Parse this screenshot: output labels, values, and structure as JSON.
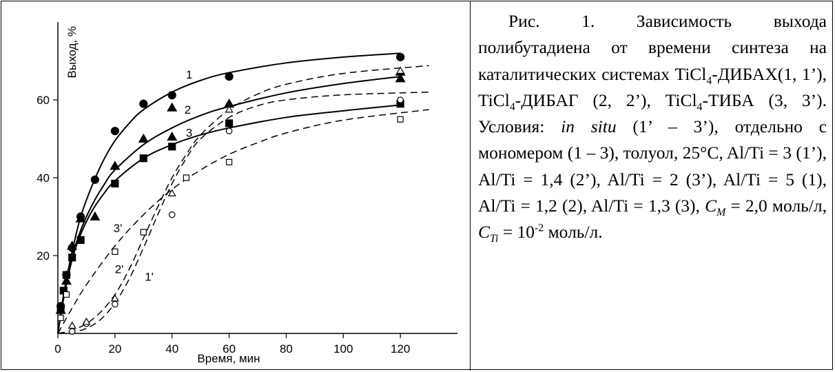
{
  "figure": {
    "caption_parts": {
      "lead": "Рис. 1. Зависимость выхода полибутадиена от времени синтеза на каталитических системах TiCl",
      "s1": "4",
      "t1": "-ДИБАХ(1, 1’), TiCl",
      "s2": "4",
      "t2": "-ДИБАГ (2, 2’), TiCl",
      "s3": "4",
      "t3": "-ТИБА (3, 3’). Условия: ",
      "insitu": "in situ",
      "t4": " (1’ – 3’), отдельно с мономером (1 – 3), толуол, 25°C, Al/Ti = 3 (1’), Al/Ti = 1,4 (2’), Al/Ti = 2 (3’), Al/Ti = 5 (1), Al/Ti = 1,2 (2), Al/Ti = 1,3 (3), ",
      "cm": "C",
      "cm_sub": "M",
      "t5": " = 2,0 моль/л, ",
      "cti": "C",
      "cti_sub": "Ti",
      "t6": " = 10",
      "exp": "-2",
      "t7": " моль/л."
    }
  },
  "chart_data": {
    "type": "scatter",
    "title": "",
    "xlabel": "Время, мин",
    "ylabel": "Выход, %",
    "xlim": [
      0,
      140
    ],
    "ylim": [
      0,
      80
    ],
    "xticks": [
      0,
      20,
      40,
      60,
      80,
      100,
      120
    ],
    "yticks": [
      20,
      40,
      60
    ],
    "grid": false,
    "legend": "none",
    "series": [
      {
        "name": "1",
        "style": "solid",
        "marker": "filled-circle",
        "points": [
          [
            1,
            7
          ],
          [
            3,
            15
          ],
          [
            5,
            22
          ],
          [
            8,
            30
          ],
          [
            13,
            39.5
          ],
          [
            20,
            52
          ],
          [
            30,
            59
          ],
          [
            40,
            61.2
          ],
          [
            60,
            66
          ],
          [
            120,
            71
          ]
        ],
        "curve": [
          [
            0,
            0
          ],
          [
            2,
            10
          ],
          [
            5,
            21
          ],
          [
            8,
            30
          ],
          [
            12,
            38
          ],
          [
            16,
            44.5
          ],
          [
            20,
            49.5
          ],
          [
            25,
            54
          ],
          [
            30,
            57.5
          ],
          [
            40,
            62
          ],
          [
            50,
            65
          ],
          [
            60,
            67
          ],
          [
            80,
            69.5
          ],
          [
            100,
            71
          ],
          [
            120,
            72
          ]
        ]
      },
      {
        "name": "2",
        "style": "solid",
        "marker": "filled-triangle",
        "points": [
          [
            1,
            6
          ],
          [
            3,
            13.5
          ],
          [
            5,
            22.5
          ],
          [
            8,
            29.5
          ],
          [
            13,
            30
          ],
          [
            20,
            43
          ],
          [
            30,
            50
          ],
          [
            40,
            58
          ],
          [
            40,
            50.5
          ],
          [
            60,
            59
          ],
          [
            120,
            65.5
          ],
          [
            120,
            67.2
          ]
        ],
        "curve": [
          [
            0,
            0
          ],
          [
            2,
            9
          ],
          [
            5,
            19.5
          ],
          [
            8,
            26.5
          ],
          [
            12,
            33
          ],
          [
            16,
            38
          ],
          [
            20,
            42
          ],
          [
            30,
            48.5
          ],
          [
            40,
            52.8
          ],
          [
            50,
            56
          ],
          [
            60,
            58.3
          ],
          [
            80,
            61.8
          ],
          [
            100,
            64.2
          ],
          [
            120,
            66
          ]
        ]
      },
      {
        "name": "3",
        "style": "solid",
        "marker": "filled-square",
        "points": [
          [
            1,
            6.5
          ],
          [
            2,
            11
          ],
          [
            3,
            15
          ],
          [
            5,
            19.5
          ],
          [
            8,
            24
          ],
          [
            20,
            38.5
          ],
          [
            30,
            45
          ],
          [
            40,
            48
          ],
          [
            60,
            54
          ],
          [
            120,
            59
          ]
        ],
        "curve": [
          [
            0,
            0
          ],
          [
            2,
            9
          ],
          [
            5,
            19
          ],
          [
            8,
            25.5
          ],
          [
            12,
            31.5
          ],
          [
            16,
            35.8
          ],
          [
            20,
            39.2
          ],
          [
            30,
            45
          ],
          [
            40,
            48.5
          ],
          [
            50,
            51
          ],
          [
            60,
            52.8
          ],
          [
            80,
            55.5
          ],
          [
            100,
            57.2
          ],
          [
            120,
            58.7
          ]
        ]
      },
      {
        "name": "1'",
        "style": "dashed",
        "marker": "open-circle",
        "points": [
          [
            5,
            0.5
          ],
          [
            10,
            2.5
          ],
          [
            20,
            7.5
          ],
          [
            40,
            30.5
          ],
          [
            60,
            52
          ],
          [
            120,
            60
          ]
        ],
        "curve": [
          [
            0,
            0
          ],
          [
            5,
            0.3
          ],
          [
            10,
            1.3
          ],
          [
            15,
            3.6
          ],
          [
            20,
            7.8
          ],
          [
            25,
            14
          ],
          [
            30,
            22
          ],
          [
            35,
            30.5
          ],
          [
            40,
            38.5
          ],
          [
            45,
            45
          ],
          [
            50,
            50
          ],
          [
            60,
            55.5
          ],
          [
            70,
            58.5
          ],
          [
            80,
            60
          ],
          [
            100,
            61.3
          ],
          [
            130,
            62
          ]
        ]
      },
      {
        "name": "2'",
        "style": "dashed",
        "marker": "open-triangle",
        "points": [
          [
            5,
            2
          ],
          [
            10,
            3
          ],
          [
            20,
            9
          ],
          [
            40,
            36
          ],
          [
            60,
            57.5
          ],
          [
            120,
            67.5
          ]
        ],
        "curve": [
          [
            0,
            0
          ],
          [
            5,
            0.8
          ],
          [
            10,
            2.5
          ],
          [
            15,
            5.5
          ],
          [
            20,
            10
          ],
          [
            25,
            16.5
          ],
          [
            30,
            24.5
          ],
          [
            35,
            32.5
          ],
          [
            40,
            40
          ],
          [
            45,
            46
          ],
          [
            50,
            51
          ],
          [
            60,
            57.5
          ],
          [
            70,
            61.5
          ],
          [
            80,
            64
          ],
          [
            100,
            66.8
          ],
          [
            130,
            68.8
          ]
        ]
      },
      {
        "name": "3'",
        "style": "dashed",
        "marker": "open-square",
        "points": [
          [
            1,
            4
          ],
          [
            3,
            10
          ],
          [
            20,
            21
          ],
          [
            30,
            26
          ],
          [
            45,
            40
          ],
          [
            60,
            44
          ],
          [
            120,
            55
          ]
        ],
        "curve": [
          [
            0,
            0
          ],
          [
            5,
            6.5
          ],
          [
            10,
            12.5
          ],
          [
            20,
            22.5
          ],
          [
            30,
            30.5
          ],
          [
            40,
            37
          ],
          [
            50,
            42
          ],
          [
            60,
            46
          ],
          [
            70,
            49
          ],
          [
            80,
            51.5
          ],
          [
            100,
            54.8
          ],
          [
            130,
            57.5
          ]
        ]
      }
    ],
    "annotations": [
      {
        "text": "1",
        "x": 46,
        "y": 65.5
      },
      {
        "text": "2",
        "x": 45.5,
        "y": 56.5
      },
      {
        "text": "3",
        "x": 46,
        "y": 50.5
      },
      {
        "text": "3'",
        "x": 21,
        "y": 26
      },
      {
        "text": "2'",
        "x": 21.5,
        "y": 15.5
      },
      {
        "text": "1'",
        "x": 32,
        "y": 13.5
      }
    ]
  }
}
